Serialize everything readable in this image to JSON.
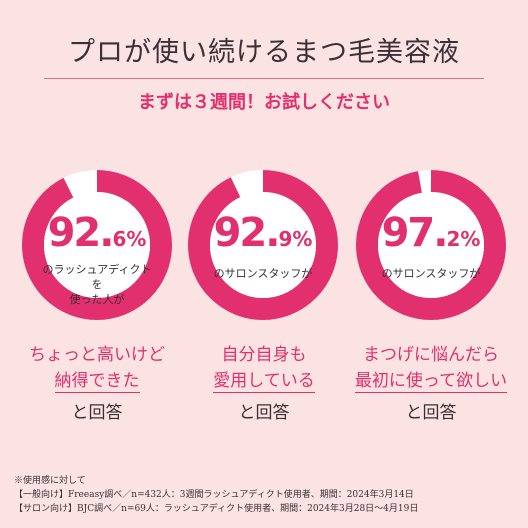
{
  "title": "プロが使い続けるまつ毛美容液",
  "subtitle": "まずは３週間！お試しください",
  "stats": [
    {
      "value_big": "92.",
      "value_small": "6%",
      "percent": 92.6,
      "caption_line1": "のラッシュアディクトを",
      "caption_line2": "使った人が",
      "heading_line1": "ちょっと高いけど",
      "heading_line2": "納得できた",
      "answer": "と回答"
    },
    {
      "value_big": "92.",
      "value_small": "9%",
      "percent": 92.9,
      "caption_line1": "のサロンスタッフが",
      "caption_line2": "",
      "heading_line1": "自分自身も",
      "heading_line2": "愛用している",
      "answer": "と回答"
    },
    {
      "value_big": "97.",
      "value_small": "2%",
      "percent": 97.2,
      "caption_line1": "のサロンスタッフが",
      "caption_line2": "",
      "heading_line1": "まつげに悩んだら",
      "heading_line2": "最初に使って欲しい",
      "answer": "と回答"
    }
  ],
  "footnote": {
    "line1": "※使用感に対して",
    "line2": "【一般向け】Freeasy調べ／n=432人：3週間ラッシュアディクト使用者、期間：2024年3月14日",
    "line3": "【サロン向け】BJC調べ／n=69人：ラッシュアディクト使用者、期間：2024年3月28日～4月19日"
  },
  "colors": {
    "accent": "#e2306f",
    "background": "#fbe3e3",
    "ring_track": "#ffffff",
    "rule": "#e26b8c"
  }
}
